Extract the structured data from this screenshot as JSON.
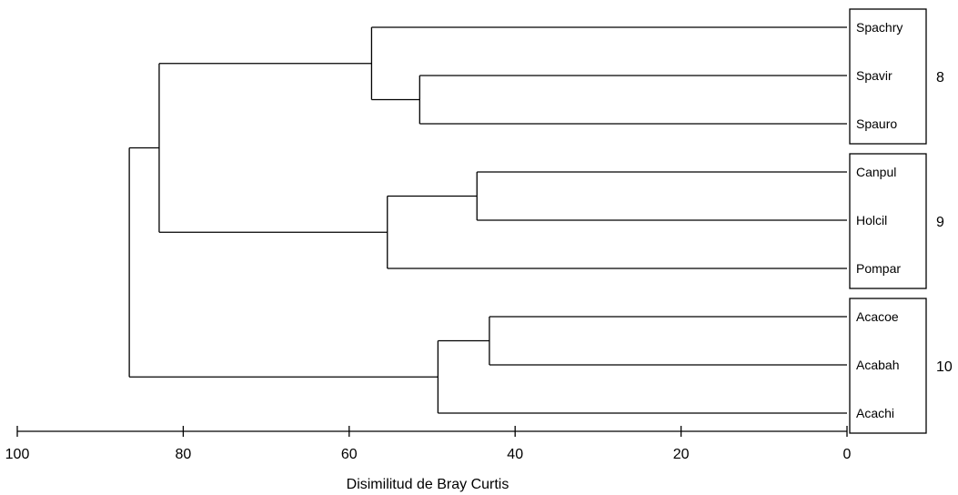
{
  "chart_data": {
    "type": "dendrogram",
    "xlabel": "Disimilitud de Bray Curtis",
    "xlim": [
      100,
      0
    ],
    "xticks": [
      "100",
      "80",
      "60",
      "40",
      "20",
      "0"
    ],
    "leaves": [
      "Spachry",
      "Spavir",
      "Spauro",
      "Canpul",
      "Holcil",
      "Pompar",
      "Acacoe",
      "Acabah",
      "Acachi"
    ],
    "merges": [
      {
        "members": [
          "Spavir",
          "Spauro"
        ],
        "height": 51.5
      },
      {
        "members": [
          "Spachry",
          "Spavir+Spauro"
        ],
        "height": 57.3
      },
      {
        "members": [
          "Canpul",
          "Holcil"
        ],
        "height": 44.6
      },
      {
        "members": [
          "Canpul+Holcil",
          "Pompar"
        ],
        "height": 55.4
      },
      {
        "members": [
          "Acacoe",
          "Acabah"
        ],
        "height": 43.1
      },
      {
        "members": [
          "Acacoe+Acabah",
          "Acachi"
        ],
        "height": 49.3
      },
      {
        "members": [
          "Spachry-cluster",
          "Canpul-cluster"
        ],
        "height": 82.9
      },
      {
        "members": [
          "Sp+Can clusters",
          "Acacoe-cluster"
        ],
        "height": 86.5
      }
    ],
    "groups": [
      {
        "label": "8",
        "members": [
          "Spachry",
          "Spavir",
          "Spauro"
        ]
      },
      {
        "label": "9",
        "members": [
          "Canpul",
          "Holcil",
          "Pompar"
        ]
      },
      {
        "label": "10",
        "members": [
          "Acacoe",
          "Acabah",
          "Acachi"
        ]
      }
    ]
  }
}
